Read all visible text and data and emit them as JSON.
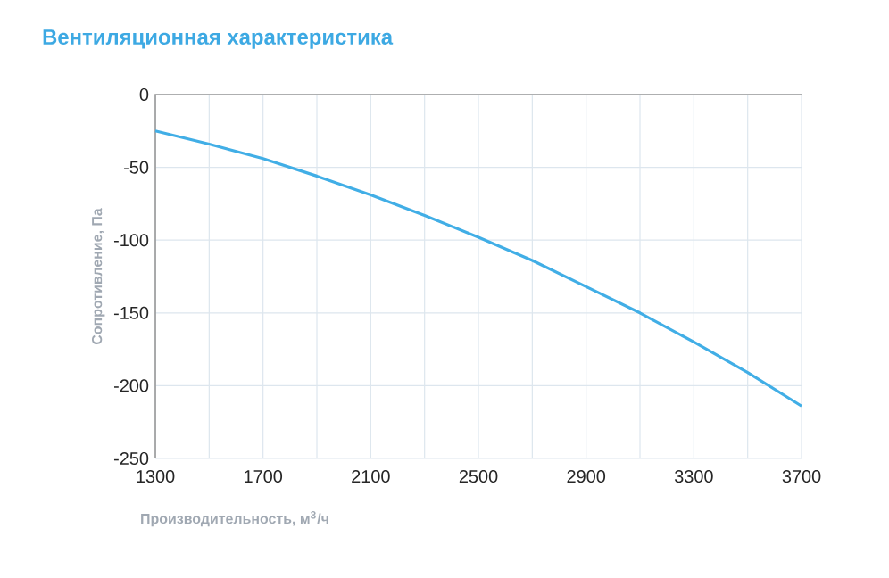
{
  "chart_data": {
    "type": "line",
    "title": "Вентиляционная характеристика",
    "xlabel": "Производительность, м$^{3}$/ч",
    "ylabel": "Сопротивление, Па",
    "x": [
      1300,
      1500,
      1700,
      1900,
      2100,
      2300,
      2500,
      2700,
      2900,
      3100,
      3300,
      3500,
      3700
    ],
    "series": [
      {
        "color": "#41aee6",
        "values": [
          -25,
          -34,
          -44,
          -56,
          -69,
          -83,
          -98,
          -114,
          -132,
          -150,
          -170,
          -191,
          -214
        ]
      }
    ],
    "xlim": [
      1300,
      3700
    ],
    "xticks": [
      1300,
      {
        "value": 1500,
        "label": null
      },
      1700,
      {
        "value": 1900,
        "label": null
      },
      2100,
      {
        "value": 2300,
        "label": null
      },
      2500,
      {
        "value": 2700,
        "label": null
      },
      2900,
      {
        "value": 3100,
        "label": null
      },
      3300,
      {
        "value": 3500,
        "label": null
      },
      3700
    ],
    "ylim": [
      -250,
      0
    ],
    "yticks": [
      -250,
      -200,
      -150,
      -100,
      -50,
      0
    ],
    "grid": true,
    "marker": "none",
    "line_style": "solid"
  }
}
